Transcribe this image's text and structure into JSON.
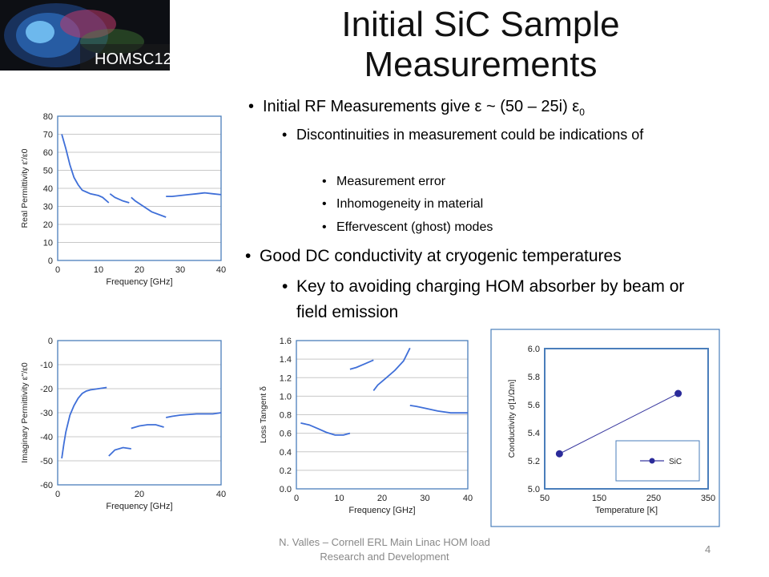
{
  "slide": {
    "title": "Initial SiC Sample Measurements",
    "logo_text": "HOMSC12",
    "bullets": {
      "b1_text": "Initial RF Measurements give ε ~ (50 – 25i) ε",
      "b1_sub": "0",
      "b1a": "Discontinuities in measurement could be indications of",
      "b1a_i": "Measurement error",
      "b1a_ii": "Inhomogeneity in material",
      "b1a_iii": "Effervescent (ghost) modes",
      "b2": "Good DC conductivity at cryogenic temperatures",
      "b2a": "Key to avoiding charging HOM absorber by beam or field emission"
    },
    "footer": "N. Valles – Cornell ERL Main Linac HOM load Research and Development",
    "page_number": "4"
  },
  "chart_data": [
    {
      "type": "line",
      "id": "real",
      "ylabel": "Real Permittivity  ε'/ε0",
      "xlabel": "Frequency [GHz]",
      "xlim": [
        0,
        40
      ],
      "ylim": [
        0,
        80
      ],
      "xticks": [
        "0",
        "10",
        "20",
        "30",
        "40"
      ],
      "yticks": [
        "0",
        "10",
        "20",
        "30",
        "40",
        "50",
        "60",
        "70",
        "80"
      ],
      "grid": true,
      "segments": [
        [
          [
            1,
            70
          ],
          [
            2,
            62
          ],
          [
            3,
            53
          ],
          [
            4,
            46
          ],
          [
            5,
            42
          ],
          [
            6,
            39
          ],
          [
            7,
            38
          ],
          [
            8,
            37
          ],
          [
            10,
            36
          ],
          [
            11,
            35
          ],
          [
            12.5,
            32
          ]
        ],
        [
          [
            12.8,
            37
          ],
          [
            14,
            35
          ],
          [
            16,
            33
          ],
          [
            17.5,
            32
          ]
        ],
        [
          [
            18,
            35
          ],
          [
            19,
            33
          ],
          [
            21,
            30
          ],
          [
            23,
            27
          ],
          [
            26.5,
            24
          ]
        ],
        [
          [
            26.5,
            35.5
          ],
          [
            28,
            35.5
          ],
          [
            30,
            36
          ],
          [
            32,
            36.5
          ],
          [
            34,
            37
          ],
          [
            36,
            37.5
          ],
          [
            38,
            37
          ],
          [
            40,
            36.5
          ]
        ]
      ]
    },
    {
      "type": "line",
      "id": "imag",
      "ylabel": "Imaginary Permittivity  ε''/ε0",
      "xlabel": "Frequency [GHz]",
      "xlim": [
        0,
        40
      ],
      "ylim": [
        -60,
        0
      ],
      "xticks": [
        "0",
        "20",
        "40"
      ],
      "yticks": [
        "-60",
        "-50",
        "-40",
        "-30",
        "-20",
        "-10",
        "0"
      ],
      "grid": true,
      "segments": [
        [
          [
            1,
            -49
          ],
          [
            1.5,
            -43
          ],
          [
            2,
            -38
          ],
          [
            3,
            -31
          ],
          [
            4,
            -27
          ],
          [
            5,
            -24
          ],
          [
            6,
            -22
          ],
          [
            7,
            -21
          ],
          [
            8,
            -20.5
          ],
          [
            10,
            -20
          ],
          [
            12,
            -19.5
          ]
        ],
        [
          [
            12.5,
            -48
          ],
          [
            14,
            -45.5
          ],
          [
            16,
            -44.5
          ],
          [
            18,
            -45
          ]
        ],
        [
          [
            18,
            -36.5
          ],
          [
            20,
            -35.5
          ],
          [
            22,
            -35
          ],
          [
            24,
            -35
          ],
          [
            26,
            -36
          ]
        ],
        [
          [
            26.5,
            -32
          ],
          [
            28,
            -31.5
          ],
          [
            30,
            -31
          ],
          [
            34,
            -30.5
          ],
          [
            38,
            -30.5
          ],
          [
            40,
            -30
          ]
        ]
      ]
    },
    {
      "type": "line",
      "id": "loss",
      "ylabel": "Loss Tangent  δ",
      "xlabel": "Frequency [GHz]",
      "xlim": [
        0,
        40
      ],
      "ylim": [
        0,
        1.6
      ],
      "xticks": [
        "0",
        "10",
        "20",
        "30",
        "40"
      ],
      "yticks": [
        "0.0",
        "0.2",
        "0.4",
        "0.6",
        "0.8",
        "1.0",
        "1.2",
        "1.4",
        "1.6"
      ],
      "grid": true,
      "segments": [
        [
          [
            1,
            0.71
          ],
          [
            3,
            0.69
          ],
          [
            5,
            0.65
          ],
          [
            7,
            0.61
          ],
          [
            9,
            0.58
          ],
          [
            11,
            0.58
          ],
          [
            12.5,
            0.6
          ]
        ],
        [
          [
            12.5,
            1.29
          ],
          [
            14,
            1.31
          ],
          [
            16,
            1.35
          ],
          [
            18,
            1.39
          ]
        ],
        [
          [
            18,
            1.06
          ],
          [
            19,
            1.12
          ],
          [
            21,
            1.2
          ],
          [
            23,
            1.28
          ],
          [
            25,
            1.38
          ],
          [
            26.5,
            1.52
          ]
        ],
        [
          [
            26.5,
            0.9
          ],
          [
            28,
            0.89
          ],
          [
            30,
            0.87
          ],
          [
            33,
            0.84
          ],
          [
            36,
            0.82
          ],
          [
            40,
            0.82
          ]
        ]
      ]
    },
    {
      "type": "line",
      "id": "cond",
      "ylabel": "Conductivity  σ[1/Ωm]",
      "xlabel": "Temperature [K]",
      "xlim": [
        50,
        350
      ],
      "ylim": [
        5.0,
        6.0
      ],
      "xticks": [
        "50",
        "150",
        "250",
        "350"
      ],
      "yticks": [
        "5.0",
        "5.2",
        "5.4",
        "5.6",
        "5.8",
        "6.0"
      ],
      "grid": false,
      "legend": "SiC",
      "legend_position": "bottom-right",
      "series": [
        {
          "name": "SiC",
          "x": [
            77,
            295
          ],
          "y": [
            5.25,
            5.68
          ]
        }
      ]
    }
  ]
}
